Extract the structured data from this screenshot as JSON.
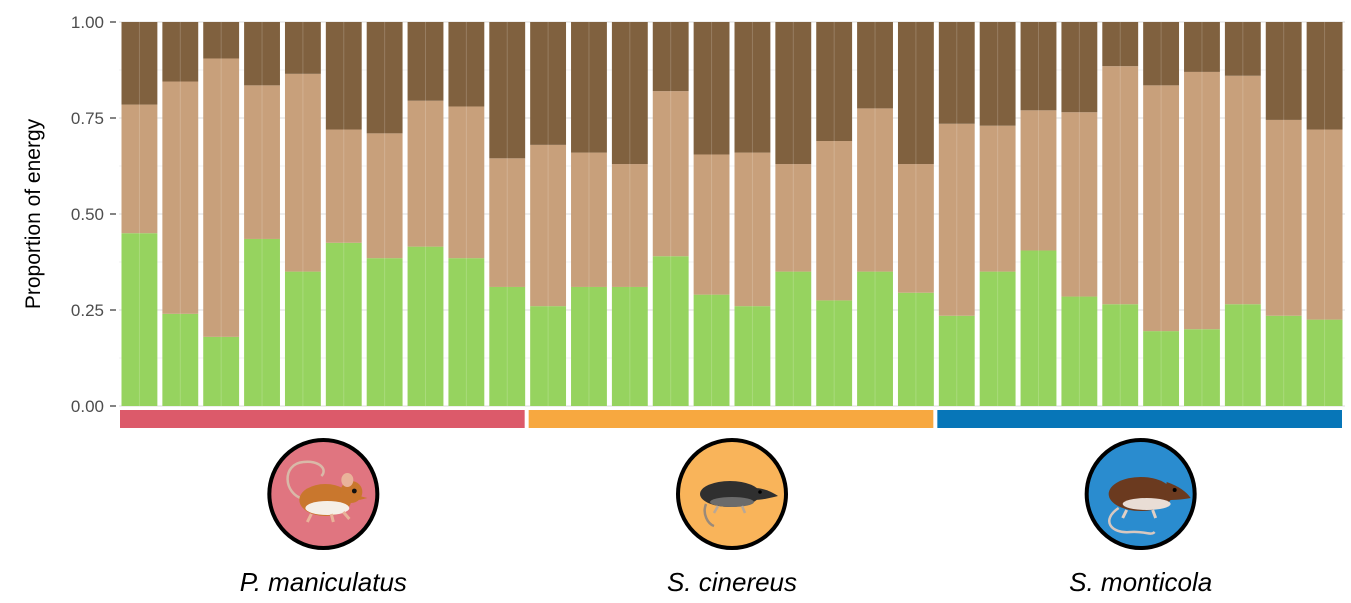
{
  "chart_data": {
    "type": "bar",
    "stacked": true,
    "ylabel": "Proportion of energy",
    "ylim": [
      0,
      1
    ],
    "yticks": [
      "0.00",
      "0.25",
      "0.50",
      "0.75",
      "1.00"
    ],
    "grid": true,
    "legend": "none",
    "series": [
      {
        "color": "#96d35f",
        "values": [
          0.45,
          0.24,
          0.18,
          0.435,
          0.35,
          0.425,
          0.385,
          0.415,
          0.385,
          0.31,
          0.26,
          0.31,
          0.31,
          0.39,
          0.29,
          0.26,
          0.35,
          0.275,
          0.35,
          0.295,
          0.235,
          0.35,
          0.405,
          0.285,
          0.265,
          0.195,
          0.2,
          0.265,
          0.235,
          0.225
        ]
      },
      {
        "color": "#c8a07b",
        "values": [
          0.335,
          0.605,
          0.725,
          0.4,
          0.515,
          0.295,
          0.325,
          0.38,
          0.395,
          0.335,
          0.42,
          0.35,
          0.32,
          0.43,
          0.365,
          0.4,
          0.28,
          0.415,
          0.425,
          0.335,
          0.5,
          0.38,
          0.365,
          0.48,
          0.62,
          0.64,
          0.67,
          0.595,
          0.51,
          0.495
        ]
      },
      {
        "color": "#80613f",
        "values": [
          0.215,
          0.155,
          0.095,
          0.165,
          0.135,
          0.28,
          0.29,
          0.205,
          0.22,
          0.355,
          0.32,
          0.34,
          0.37,
          0.18,
          0.345,
          0.34,
          0.37,
          0.31,
          0.225,
          0.37,
          0.265,
          0.27,
          0.23,
          0.235,
          0.115,
          0.165,
          0.13,
          0.14,
          0.255,
          0.28
        ]
      }
    ],
    "groups": [
      {
        "name": "P. maniculatus",
        "count": 10,
        "color": "#dc5a6a",
        "icon": "deer-mouse-icon",
        "icon_bg": "#e07580"
      },
      {
        "name": "S. cinereus",
        "count": 10,
        "color": "#f7a840",
        "icon": "shrew-icon",
        "icon_bg": "#f9b45a"
      },
      {
        "name": "S. monticola",
        "count": 10,
        "color": "#0776b8",
        "icon": "montane-shrew-icon",
        "icon_bg": "#2a8ccf"
      }
    ]
  }
}
